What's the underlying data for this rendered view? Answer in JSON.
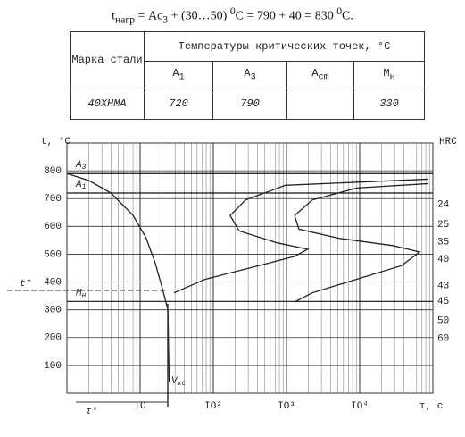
{
  "formula": {
    "parts": [
      {
        "text": "t"
      },
      {
        "text": "нагр",
        "sub": true
      },
      {
        "text": " = Ac"
      },
      {
        "text": "3",
        "sub": true
      },
      {
        "text": " + (30…50) "
      },
      {
        "text": "0",
        "sup": true
      },
      {
        "text": "C = 790 + 40 = 830 "
      },
      {
        "text": "0",
        "sup": true
      },
      {
        "text": "C."
      }
    ]
  },
  "table": {
    "steel_header": "Марка стали",
    "temps_header": "Температуры критических точек, °C",
    "columns": [
      {
        "main": "A",
        "sub": "1"
      },
      {
        "main": "A",
        "sub": "3"
      },
      {
        "main": "A",
        "sub": "cm"
      },
      {
        "main": "M",
        "sub": "н"
      }
    ],
    "rows": [
      [
        "40ХНМА",
        "720",
        "790",
        null,
        "330"
      ]
    ]
  },
  "chart_data": {
    "type": "line",
    "y_label": "t, °C",
    "x_label": "τ, c",
    "y2_label": "HRC",
    "xscale": "log",
    "xlim": [
      1,
      100000
    ],
    "xticks": [
      {
        "value": 10,
        "label": "IO"
      },
      {
        "value": 100,
        "label": "IO²"
      },
      {
        "value": 1000,
        "label": "IO³"
      },
      {
        "value": 10000,
        "label": "IO⁴"
      }
    ],
    "ylim": [
      0,
      900
    ],
    "yticks": [
      100,
      200,
      300,
      400,
      500,
      600,
      700,
      800
    ],
    "grid": true,
    "series": [
      {
        "name": "cooling",
        "color": "#222",
        "x": [
          1,
          2,
          4,
          8,
          12,
          16,
          20,
          24,
          24.5,
          25
        ],
        "values": [
          790,
          765,
          720,
          640,
          560,
          470,
          380,
          300,
          150,
          40
        ]
      },
      {
        "name": "start",
        "color": "#222",
        "x": [
          87000,
          970,
          275,
          170,
          225,
          740,
          1950,
          1290,
          420,
          78,
          29
        ],
        "values": [
          770,
          748,
          695,
          639,
          584,
          541,
          518,
          492,
          459,
          410,
          361
        ]
      },
      {
        "name": "end",
        "color": "#222",
        "x": [
          87000,
          9100,
          2250,
          1290,
          1480,
          5250,
          28300,
          66000,
          37500,
          9100,
          2250,
          1290
        ],
        "values": [
          754,
          738,
          695,
          639,
          590,
          557,
          531,
          508,
          459,
          410,
          361,
          328
        ]
      }
    ],
    "levels": [
      {
        "main": "A",
        "sub": "3",
        "t": 790
      },
      {
        "main": "A",
        "sub": "1",
        "t": 720
      },
      {
        "main": "M",
        "sub": "н",
        "t": 330
      }
    ],
    "hrc_labels": [
      {
        "hrc": 24,
        "t": 679
      },
      {
        "hrc": 25,
        "t": 607
      },
      {
        "hrc": 35,
        "t": 544
      },
      {
        "hrc": 40,
        "t": 482
      },
      {
        "hrc": 43,
        "t": 387
      },
      {
        "hrc": 45,
        "t": 331
      },
      {
        "hrc": 50,
        "t": 262
      },
      {
        "hrc": 60,
        "t": 197
      }
    ],
    "t_star": "t*",
    "tau_star": "τ*",
    "vkc": {
      "main": "V",
      "sub": "кс"
    }
  }
}
